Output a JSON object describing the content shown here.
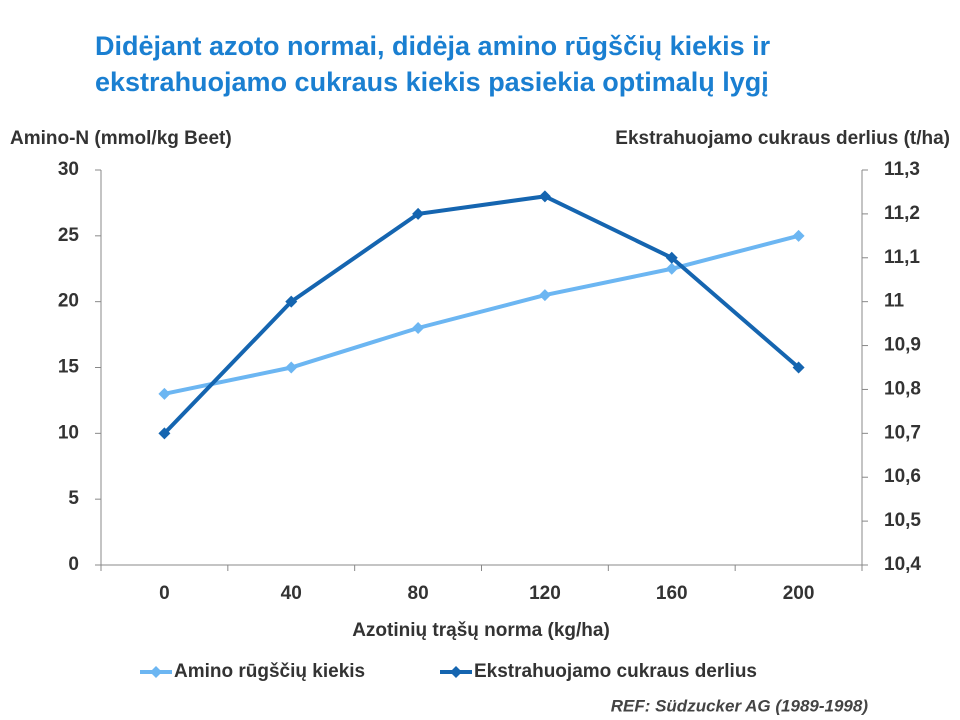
{
  "chart_data": {
    "type": "line",
    "title": [
      "Didėjant azoto normai, didėja amino rūgščių kiekis ir",
      "ekstrahuojamo cukraus kiekis pasiekia optimalų lygį"
    ],
    "y_label": "Amino-N (mmol/kg Beet)",
    "y2_label": "Ekstrahuojamo cukraus derlius (t/ha)",
    "x_label": "Azotinių trąšų norma (kg/ha)",
    "note": "REF: Südzucker AG (1989-1998)",
    "categories": [
      "0",
      "40",
      "80",
      "120",
      "160",
      "200"
    ],
    "ylim": [
      0,
      30
    ],
    "yticks": [
      0,
      5,
      10,
      15,
      20,
      25,
      30
    ],
    "y2lim": [
      10.4,
      11.3
    ],
    "y2ticks": [
      {
        "value": 10.4,
        "label": "10,4"
      },
      {
        "value": 10.5,
        "label": "10,5"
      },
      {
        "value": 10.6,
        "label": "10,6"
      },
      {
        "value": 10.7,
        "label": "10,7"
      },
      {
        "value": 10.8,
        "label": "10,8"
      },
      {
        "value": 10.9,
        "label": "10,9"
      },
      11,
      {
        "value": 11.1,
        "label": "11,1"
      },
      {
        "value": 11.2,
        "label": "11,2"
      },
      {
        "value": 11.3,
        "label": "11,3"
      }
    ],
    "legend": "bottom",
    "series": [
      {
        "name": "Amino rūgščių kiekis",
        "color": "#6cb6f2",
        "values": [
          13,
          15,
          18,
          20.5,
          22.5,
          25
        ]
      },
      {
        "name": "Ekstrahuojamo cukraus derlius",
        "color": "#1565b0",
        "axis": "y2",
        "values": [
          10.7,
          11.0,
          11.2,
          11.24,
          11.1,
          10.85
        ]
      }
    ]
  }
}
